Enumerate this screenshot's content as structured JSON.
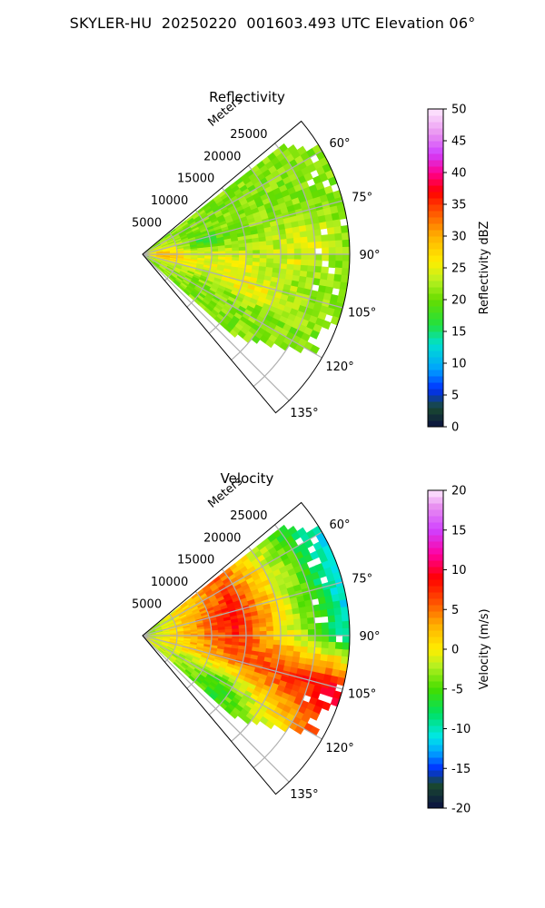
{
  "title": "SKYLER-HU  20250220  001603.493 UTC Elevation 06°",
  "chart_data": [
    {
      "type": "heatmap",
      "subtype": "polar-sector",
      "title": "Reflectivity",
      "radius_label": "Meters",
      "radius_ticks": [
        5000,
        10000,
        15000,
        20000,
        25000
      ],
      "radius_range": [
        0,
        30000
      ],
      "azimuth_range": [
        50,
        140
      ],
      "azimuth_ticks": [
        60,
        75,
        90,
        105,
        120,
        135
      ],
      "azimuth_tick_labels": [
        "60°",
        "75°",
        "90°",
        "105°",
        "120°",
        "135°"
      ],
      "grid": true,
      "colorbar": {
        "label": "Reflectivity dBZ",
        "range": [
          0,
          50
        ],
        "ticks": [
          0,
          5,
          10,
          15,
          20,
          25,
          30,
          35,
          40,
          45,
          50
        ],
        "stops": [
          [
            0,
            "#0a1040"
          ],
          [
            3,
            "#1a4a30"
          ],
          [
            6,
            "#0030ff"
          ],
          [
            9,
            "#00a0ff"
          ],
          [
            13,
            "#00e0d0"
          ],
          [
            16,
            "#20e040"
          ],
          [
            20,
            "#66dd00"
          ],
          [
            23,
            "#b8f020"
          ],
          [
            26,
            "#ffee00"
          ],
          [
            30,
            "#ffb000"
          ],
          [
            34,
            "#ff5000"
          ],
          [
            37,
            "#ff0000"
          ],
          [
            40,
            "#ff0090"
          ],
          [
            43,
            "#d040ff"
          ],
          [
            46,
            "#e890f0"
          ],
          [
            50,
            "#ffe8ff"
          ]
        ]
      },
      "field": {
        "base_value": 21,
        "features": [
          {
            "azimuth": 90,
            "range_m": 3000,
            "value": 28,
            "azimuth_width": 20,
            "range_width_m": 3500
          },
          {
            "azimuth": 96,
            "range_m": 12000,
            "value": 25,
            "azimuth_width": 10,
            "range_width_m": 9000
          },
          {
            "azimuth": 108,
            "range_m": 16000,
            "value": 25,
            "azimuth_width": 6,
            "range_width_m": 7000
          },
          {
            "azimuth": 78,
            "range_m": 9000,
            "value": 16,
            "azimuth_width": 5,
            "range_width_m": 2500
          },
          {
            "azimuth": 85,
            "range_m": 24000,
            "value": 24,
            "azimuth_width": 10,
            "range_width_m": 5000
          },
          {
            "azimuth": 93,
            "range_m": 22000,
            "value": 34,
            "azimuth_width": 1,
            "range_width_m": 400
          }
        ]
      }
    },
    {
      "type": "heatmap",
      "subtype": "polar-sector",
      "title": "Velocity",
      "radius_label": "Meters",
      "radius_ticks": [
        5000,
        10000,
        15000,
        20000,
        25000
      ],
      "radius_range": [
        0,
        30000
      ],
      "azimuth_range": [
        50,
        140
      ],
      "azimuth_ticks": [
        60,
        75,
        90,
        105,
        120,
        135
      ],
      "azimuth_tick_labels": [
        "60°",
        "75°",
        "90°",
        "105°",
        "120°",
        "135°"
      ],
      "grid": true,
      "colorbar": {
        "label": "Velocity (m/s)",
        "range": [
          -20,
          20
        ],
        "ticks": [
          -20,
          -15,
          -10,
          -5,
          0,
          5,
          10,
          15,
          20
        ],
        "stops": [
          [
            -20,
            "#0a1040"
          ],
          [
            -17,
            "#1a4a30"
          ],
          [
            -15,
            "#0030ff"
          ],
          [
            -13,
            "#00a0ff"
          ],
          [
            -11,
            "#00e8e8"
          ],
          [
            -8,
            "#00e060"
          ],
          [
            -5,
            "#44dd00"
          ],
          [
            -2,
            "#b8f020"
          ],
          [
            0,
            "#ffee00"
          ],
          [
            3,
            "#ffb000"
          ],
          [
            6,
            "#ff5000"
          ],
          [
            9,
            "#ff0000"
          ],
          [
            12,
            "#ff00a0"
          ],
          [
            15,
            "#d040ff"
          ],
          [
            18,
            "#e890f0"
          ],
          [
            20,
            "#ffe8ff"
          ]
        ]
      },
      "field": {
        "description_values": "radial velocity in m/s by azimuth and range",
        "profile": [
          {
            "azimuth": 60,
            "near": -4,
            "mid": 6,
            "far": -11
          },
          {
            "azimuth": 75,
            "near": -4,
            "mid": 9,
            "far": -12
          },
          {
            "azimuth": 90,
            "near": -3,
            "mid": 8,
            "far": -10
          },
          {
            "azimuth": 105,
            "near": -2,
            "mid": 5,
            "far": 10
          },
          {
            "azimuth": 120,
            "near": 0,
            "mid": -5,
            "far": 7
          },
          {
            "azimuth": 135,
            "near": 0,
            "mid": -6,
            "far": -4
          }
        ]
      }
    }
  ]
}
